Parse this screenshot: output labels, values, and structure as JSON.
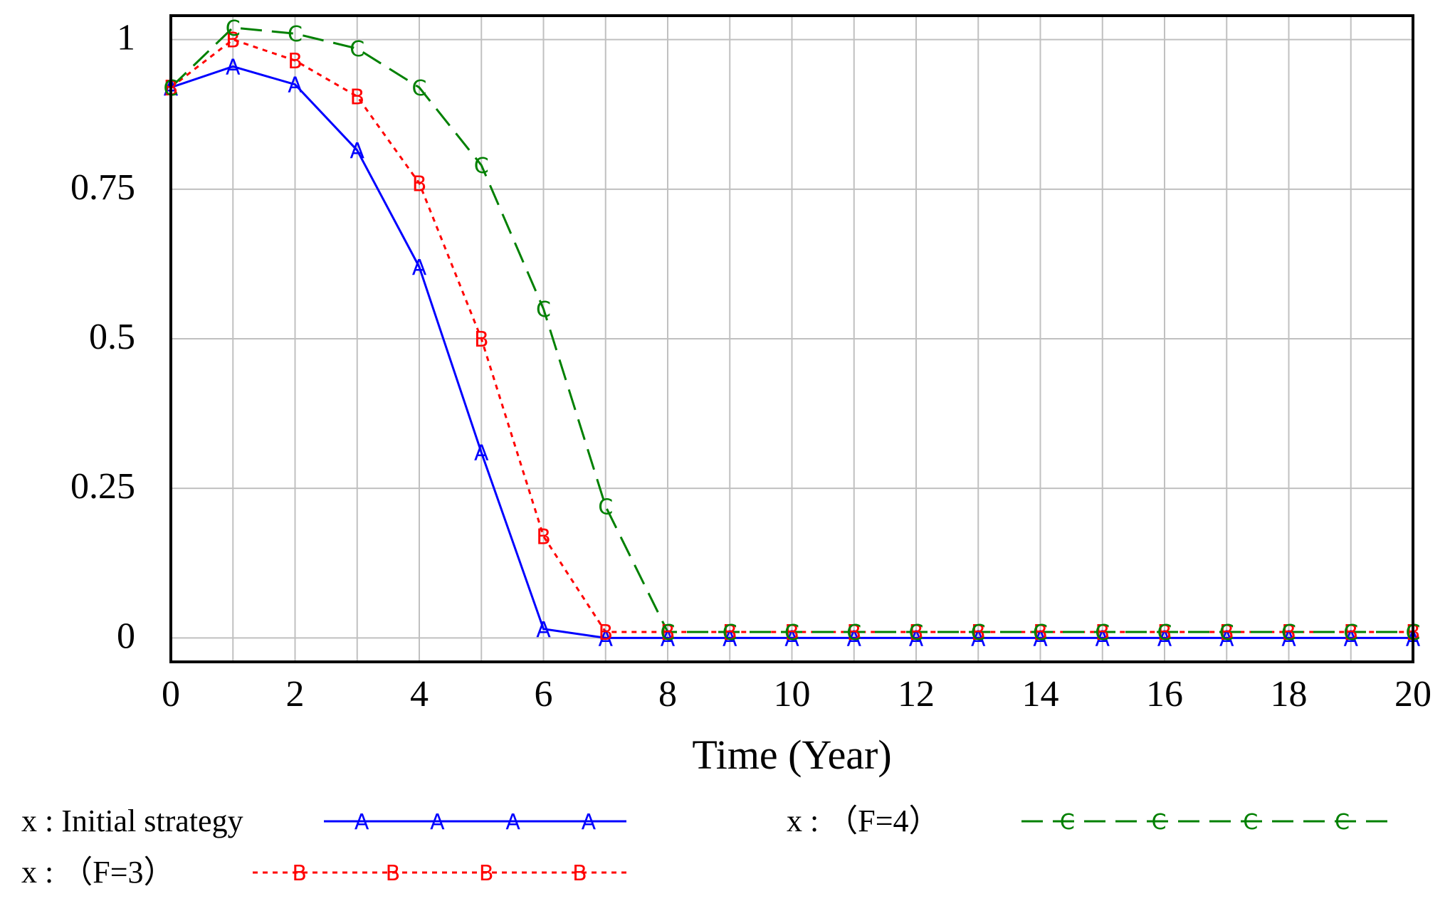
{
  "chart_data": {
    "type": "line",
    "xlabel": "Time (Year)",
    "ylabel": "",
    "xlim": [
      0,
      20
    ],
    "ylim": [
      -0.04,
      1.04
    ],
    "x_ticks": [
      0,
      2,
      4,
      6,
      8,
      10,
      12,
      14,
      16,
      18,
      20
    ],
    "y_ticks": [
      0,
      0.25,
      0.5,
      0.75,
      1
    ],
    "grid": true,
    "legend_position": "bottom",
    "x": [
      0,
      1,
      2,
      3,
      4,
      5,
      6,
      7,
      8,
      9,
      10,
      11,
      12,
      13,
      14,
      15,
      16,
      17,
      18,
      19,
      20
    ],
    "series": [
      {
        "name": "x : Initial strategy",
        "color": "#0000ff",
        "style": "solid",
        "marker": "A",
        "values": [
          0.92,
          0.955,
          0.925,
          0.815,
          0.62,
          0.31,
          0.015,
          0,
          0,
          0,
          0,
          0,
          0,
          0,
          0,
          0,
          0,
          0,
          0,
          0,
          0
        ]
      },
      {
        "name": "x : （F=3）",
        "color": "#ff0000",
        "style": "dotted",
        "marker": "B",
        "values": [
          0.92,
          1.0,
          0.965,
          0.905,
          0.76,
          0.5,
          0.17,
          0.01,
          0.01,
          0.01,
          0.01,
          0.01,
          0.01,
          0.01,
          0.01,
          0.01,
          0.01,
          0.01,
          0.01,
          0.01,
          0.01
        ]
      },
      {
        "name": "x : （F=4）",
        "color": "#008000",
        "style": "dashed",
        "marker": "C",
        "values": [
          0.92,
          1.02,
          1.01,
          0.985,
          0.92,
          0.79,
          0.55,
          0.22,
          0.01,
          0.01,
          0.01,
          0.01,
          0.01,
          0.01,
          0.01,
          0.01,
          0.01,
          0.01,
          0.01,
          0.01,
          0.01
        ]
      }
    ]
  }
}
